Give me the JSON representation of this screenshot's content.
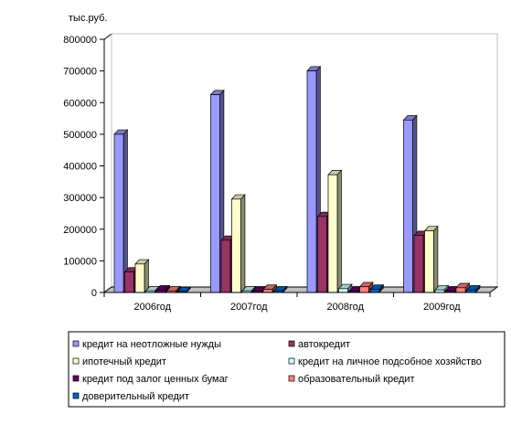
{
  "chart_data": {
    "type": "bar",
    "unit_label": "тыс.руб.",
    "categories": [
      "2006год",
      "2007год",
      "2008год",
      "2009год"
    ],
    "ylim": [
      0,
      800000
    ],
    "yticks": [
      0,
      100000,
      200000,
      300000,
      400000,
      500000,
      600000,
      700000,
      800000
    ],
    "grid": false,
    "legend_position": "bottom",
    "series": [
      {
        "name": "кредит на неотложные нужды",
        "color": "#9999ff",
        "values": [
          500000,
          625000,
          700000,
          545000
        ]
      },
      {
        "name": "автокредит",
        "color": "#993366",
        "values": [
          65000,
          165000,
          240000,
          180000
        ]
      },
      {
        "name": "ипотечный кредит",
        "color": "#ffffcc",
        "values": [
          90000,
          295000,
          372000,
          195000
        ]
      },
      {
        "name": "кредит на личное подсобное хозяйство",
        "color": "#ccffff",
        "values": [
          5000,
          5000,
          12000,
          8000
        ]
      },
      {
        "name": "кредит под залог ценных бумаг",
        "color": "#660066",
        "values": [
          8000,
          5000,
          5000,
          5000
        ]
      },
      {
        "name": "образовательный кредит",
        "color": "#ff8080",
        "values": [
          5000,
          10000,
          18000,
          15000
        ]
      },
      {
        "name": "доверительный кредит",
        "color": "#0066cc",
        "values": [
          3000,
          5000,
          10000,
          8000
        ]
      }
    ]
  }
}
